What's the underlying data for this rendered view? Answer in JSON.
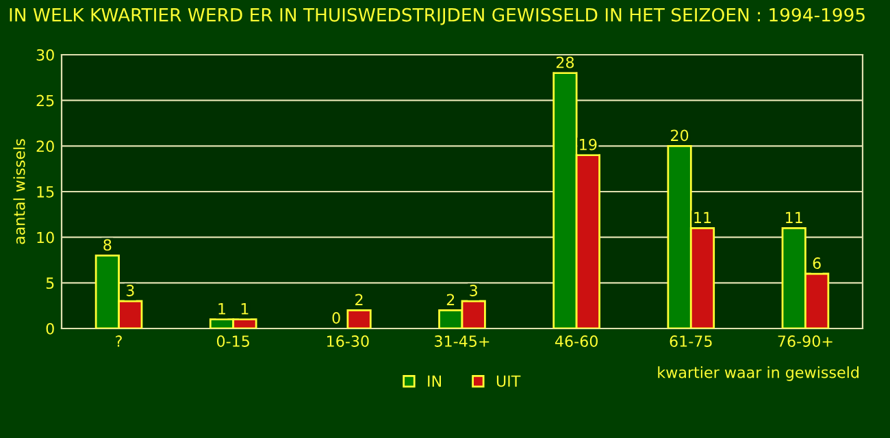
{
  "chart_data": {
    "type": "bar",
    "title": "IN WELK KWARTIER WERD ER IN THUISWEDSTRIJDEN GEWISSELD IN HET SEIZOEN : 1994-1995",
    "xlabel": "kwartier waar in gewisseld",
    "ylabel": "aantal wissels",
    "categories": [
      "?",
      "0-15",
      "16-30",
      "31-45+",
      "46-60",
      "61-75",
      "76-90+"
    ],
    "series": [
      {
        "name": "IN",
        "color": "#008000",
        "values": [
          8,
          1,
          0,
          2,
          28,
          20,
          11
        ]
      },
      {
        "name": "UIT",
        "color": "#cc1111",
        "values": [
          3,
          1,
          2,
          3,
          19,
          11,
          6
        ]
      }
    ],
    "ylim": [
      0,
      30
    ],
    "yticks": [
      0,
      5,
      10,
      15,
      20,
      25,
      30
    ],
    "grid": "y",
    "legend": "bottom",
    "data_labels": true
  }
}
